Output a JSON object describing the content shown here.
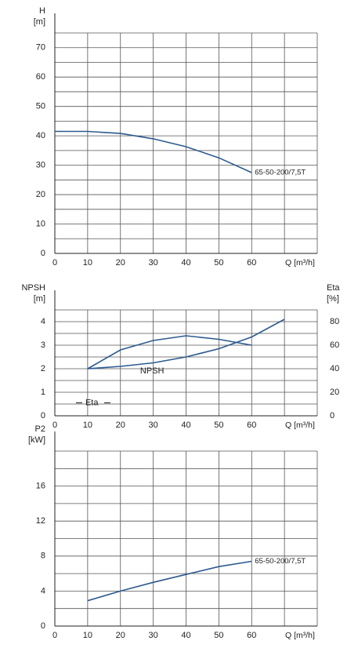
{
  "chart_data": [
    {
      "type": "line",
      "ylabel": "H",
      "yunit": "[m]",
      "xlabel": "Q [m³/h]",
      "x": [
        0,
        10,
        20,
        30,
        40,
        50,
        60
      ],
      "series": [
        {
          "name": "65-50-200/7,5T",
          "color": "#2c5a8e",
          "values": [
            41.5,
            41.5,
            40.8,
            39,
            36.3,
            32.5,
            27.5
          ]
        }
      ],
      "xlim": [
        0,
        80
      ],
      "xticks": [
        0,
        10,
        20,
        30,
        40,
        50,
        60
      ],
      "minor_xticks": [
        70,
        80
      ],
      "ylim": [
        0,
        75
      ],
      "yticks": [
        0,
        10,
        20,
        30,
        40,
        50,
        60,
        70
      ],
      "minor_yticks": [
        5,
        15,
        25,
        35,
        45,
        55,
        65,
        75
      ],
      "grid": true
    },
    {
      "type": "line",
      "ylabel": "NPSH",
      "yunit": "[m]",
      "y2label": "Eta",
      "y2unit": "[%]",
      "xlabel": "Q [m³/h]",
      "x": [
        10,
        20,
        30,
        40,
        50,
        60,
        70
      ],
      "series": [
        {
          "name": "NPSH",
          "color": "#2c5a8e",
          "values": [
            2.0,
            2.1,
            2.25,
            2.5,
            2.85,
            3.35,
            4.1
          ]
        },
        {
          "name": "Eta",
          "color": "#2c5a8e",
          "axis": "y2",
          "values": [
            40,
            56,
            64,
            68,
            65,
            60,
            null
          ]
        }
      ],
      "xlim": [
        0,
        80
      ],
      "xticks": [
        0,
        10,
        20,
        30,
        40,
        50,
        60
      ],
      "minor_xticks": [
        70,
        80
      ],
      "ylim": [
        0,
        4.5
      ],
      "yticks": [
        0,
        1,
        2,
        3,
        4
      ],
      "minor_yticks": [
        0.5,
        1.5,
        2.5,
        3.5,
        4.5
      ],
      "y2lim": [
        0,
        90
      ],
      "y2ticks": [
        0,
        20,
        40,
        60,
        80
      ],
      "grid": true
    },
    {
      "type": "line",
      "ylabel": "P2",
      "yunit": "[kW]",
      "xlabel": "Q [m³/h]",
      "x": [
        10,
        20,
        30,
        40,
        50,
        60
      ],
      "series": [
        {
          "name": "65-50-200/7,5T",
          "color": "#2c5a8e",
          "values": [
            2.9,
            4.0,
            5.0,
            5.9,
            6.8,
            7.4
          ]
        }
      ],
      "xlim": [
        0,
        80
      ],
      "xticks": [
        0,
        10,
        20,
        30,
        40,
        50,
        60
      ],
      "minor_xticks": [
        70,
        80
      ],
      "ylim": [
        0,
        20
      ],
      "yticks": [
        0,
        4,
        8,
        12,
        16
      ],
      "minor_yticks": [
        2,
        6,
        10,
        14,
        18,
        20
      ],
      "grid": true
    }
  ]
}
